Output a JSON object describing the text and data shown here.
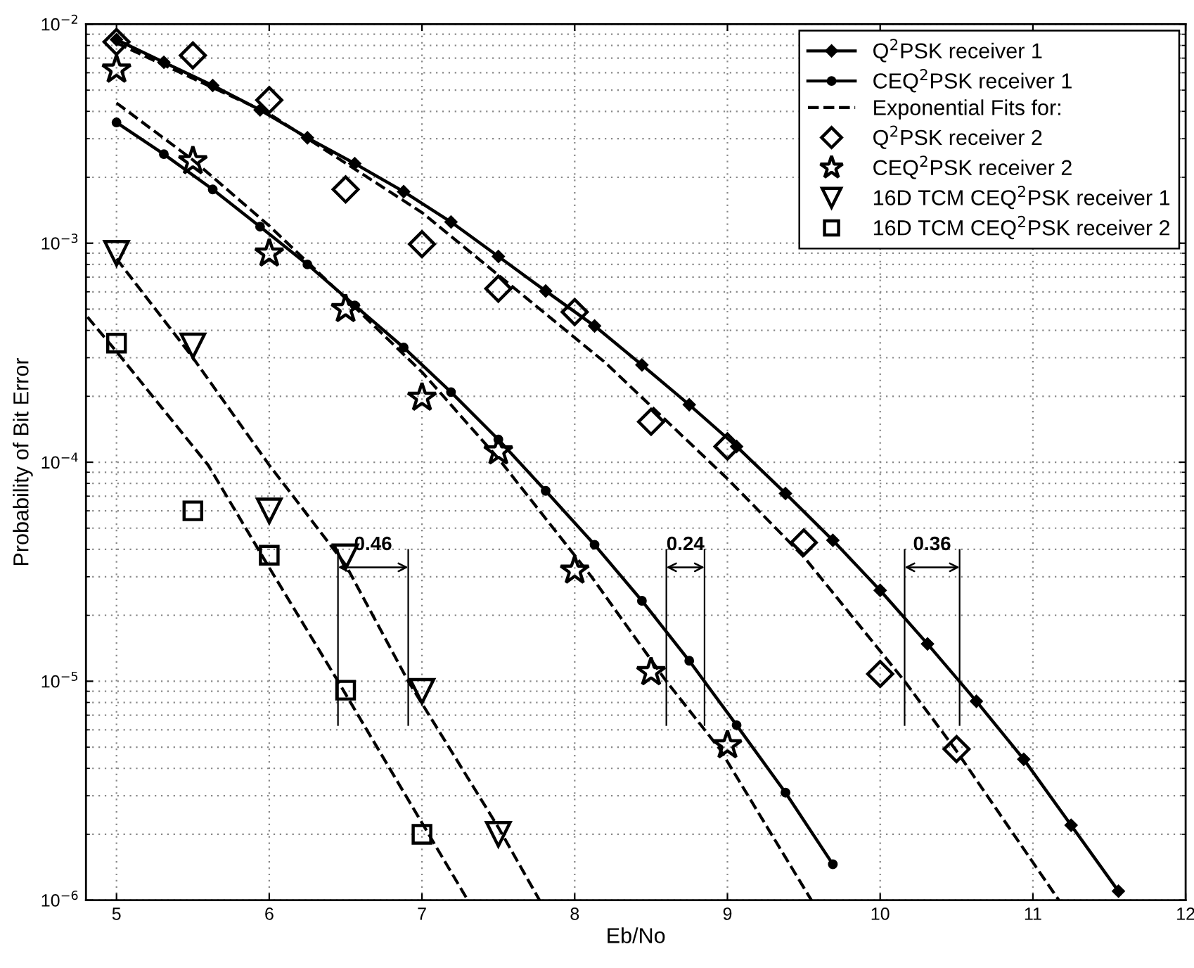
{
  "chart_data": {
    "type": "line",
    "xlabel": "Eb/No",
    "ylabel": "Probability of Bit Error",
    "log": "y",
    "grid": true,
    "legend": "top right",
    "xlim": [
      4.8,
      12
    ],
    "xticks": [
      5,
      6,
      7,
      8,
      9,
      10,
      11,
      12
    ],
    "ylim": [
      1e-06,
      0.01
    ],
    "yticks": [
      {
        "value": 1e-06,
        "label": "10$^{−6}$"
      },
      {
        "value": 1e-05,
        "label": "10$^{−5}$"
      },
      {
        "value": 0.0001,
        "label": "10$^{−4}$"
      },
      {
        "value": 0.001,
        "label": "10$^{−3}$"
      },
      {
        "value": 0.01,
        "label": "10$^{−2}$"
      }
    ],
    "series": [
      {
        "name": "Q$^{2}$PSK receiver 1",
        "marker": "diamond",
        "line_style": "solid",
        "color": "#000000",
        "x": [
          5,
          5.31,
          5.63,
          5.94,
          6.25,
          6.56,
          6.88,
          7.19,
          7.5,
          7.81,
          8.13,
          8.44,
          8.75,
          9.06,
          9.38,
          9.69,
          10,
          10.31,
          10.63,
          10.94,
          11.25,
          11.56
        ],
        "values": [
          0.0085,
          0.0067,
          0.00525,
          0.00406,
          0.00303,
          0.00231,
          0.00172,
          0.00125,
          0.00087,
          0.000605,
          0.000419,
          0.000278,
          0.000183,
          0.000118,
          7.2e-05,
          4.4e-05,
          2.6e-05,
          1.48e-05,
          8.1e-06,
          4.4e-06,
          2.2e-06,
          1.1e-06
        ]
      },
      {
        "name": "CEQ$^{2}$PSK receiver 1",
        "marker": "circle",
        "line_style": "solid",
        "color": "#000000",
        "x": [
          5,
          5.31,
          5.63,
          5.94,
          6.25,
          6.56,
          6.88,
          7.19,
          7.5,
          7.81,
          8.13,
          8.44,
          8.75,
          9.06,
          9.38,
          9.69
        ],
        "values": [
          0.00356,
          0.00255,
          0.00176,
          0.00119,
          0.0008,
          0.00052,
          0.000334,
          0.000209,
          0.000127,
          7.4e-05,
          4.2e-05,
          2.33e-05,
          1.24e-05,
          6.3e-06,
          3.1e-06,
          1.46e-06
        ]
      },
      {
        "name": "Exponential Fits for:",
        "marker": "none",
        "line_style": "dashed",
        "color": "#000000",
        "x": [
          5,
          6,
          7,
          8.2,
          9,
          9.5,
          10.16,
          10.5,
          11.17
        ],
        "values": [
          0.0082,
          0.0039,
          0.00138,
          0.000285,
          8.4e-05,
          3.7e-05,
          1e-05,
          4.8e-06,
          1e-06
        ]
      },
      {
        "name": "Q$^{2}$PSK receiver 2",
        "type": "scatter",
        "marker": "diamond",
        "color": "#000000",
        "x": [
          5,
          5.5,
          6,
          6.5,
          7,
          7.5,
          8,
          8.5,
          9,
          9.5,
          10,
          10.5
        ],
        "values": [
          0.0083,
          0.0072,
          0.0045,
          0.00176,
          0.00099,
          0.00062,
          0.000485,
          0.000153,
          0.000118,
          4.3e-05,
          1.08e-05,
          4.9e-06
        ]
      },
      {
        "name": "CEQ$^{2}$PSK receiver 2",
        "type": "scatter",
        "marker": "star",
        "color": "#000000",
        "x": [
          5,
          5.5,
          6,
          6.5,
          7,
          7.5,
          8,
          8.5,
          9
        ],
        "values": [
          0.0062,
          0.00237,
          0.000897,
          0.0005,
          0.000197,
          0.000112,
          3.2e-05,
          1.1e-05,
          5.1e-06
        ]
      },
      {
        "name": "16D TCM CEQ$^{2}$PSK receiver 1",
        "type": "scatter",
        "marker": "triangle",
        "color": "#000000",
        "x": [
          5,
          5.5,
          6,
          6.5,
          7,
          7.5
        ],
        "values": [
          0.0009,
          0.00034,
          6e-05,
          3.7e-05,
          9e-06,
          2e-06
        ]
      },
      {
        "name": "16D TCM CEQ$^{2}$PSK receiver 2",
        "type": "scatter",
        "marker": "square",
        "color": "#000000",
        "x": [
          5,
          5.5,
          6,
          6.5,
          7
        ],
        "values": [
          0.00035,
          6e-05,
          3.76e-05,
          9.1e-06,
          2e-06
        ]
      },
      {
        "marker": "none",
        "line_style": "dashed",
        "color": "#000000",
        "x": [
          5,
          5.5,
          6,
          6.5,
          7,
          7.5,
          8.11,
          8.6,
          8.95,
          9.55
        ],
        "values": [
          0.00437,
          0.0024,
          0.0012,
          0.00056,
          0.000258,
          0.000104,
          3e-05,
          1e-05,
          4.9e-06,
          1e-06
        ]
      },
      {
        "marker": "none",
        "line_style": "dashed",
        "color": "#000000",
        "x": [
          5,
          5.5,
          6,
          6.5,
          6.91,
          7.5,
          7.77
        ],
        "values": [
          0.00085,
          0.0003,
          9.7e-05,
          3.4e-05,
          1e-05,
          2.15e-06,
          1e-06
        ]
      },
      {
        "marker": "none",
        "line_style": "dashed",
        "color": "#000000",
        "x": [
          4.81,
          5,
          5.6,
          6,
          6.45,
          7.3
        ],
        "values": [
          0.00046,
          0.00032,
          9.7e-05,
          3.3e-05,
          1e-05,
          1e-06
        ]
      }
    ],
    "ref_lines": [
      {
        "axis": "x",
        "value": 6.45,
        "label": null
      },
      {
        "axis": "x",
        "value": 6.91,
        "label": null
      },
      {
        "axis": "x",
        "value": 8.6,
        "label": null
      },
      {
        "axis": "x",
        "value": 8.85,
        "label": null
      },
      {
        "axis": "x",
        "value": 10.16,
        "label": null
      },
      {
        "axis": "x",
        "value": 10.52,
        "label": null
      }
    ],
    "annotations": [
      "0.46",
      "0.24",
      "0.36"
    ]
  }
}
